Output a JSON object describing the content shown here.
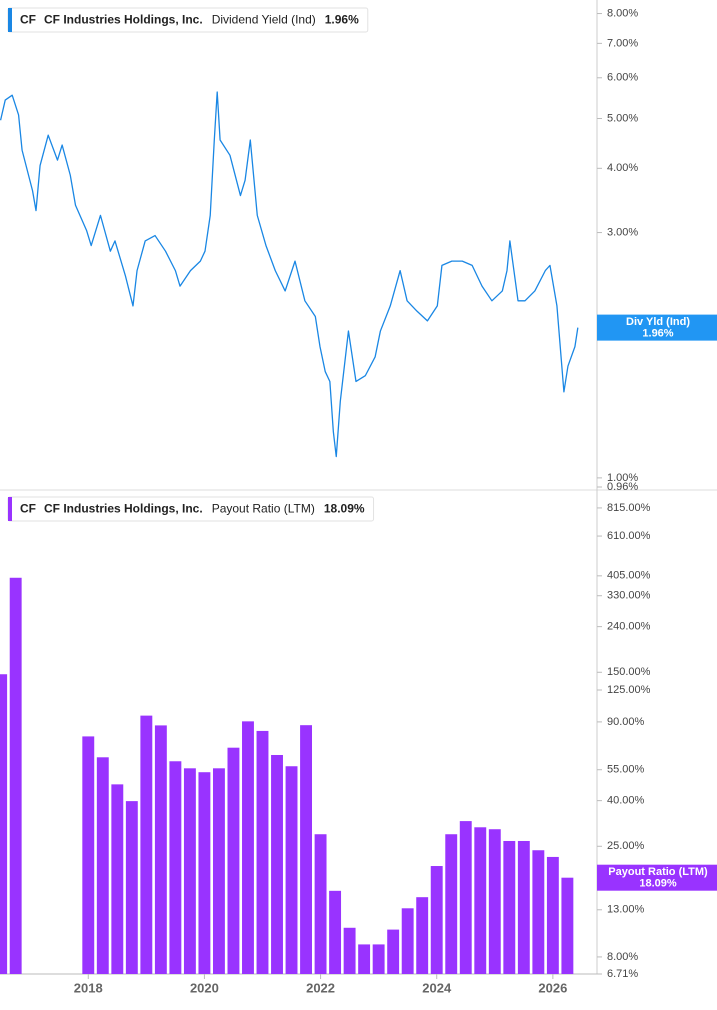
{
  "chart_data": [
    {
      "type": "line",
      "ticker": "CF",
      "company": "CF Industries Holdings, Inc.",
      "series": [
        {
          "name": "Dividend Yield (Ind)",
          "color": "#1a87e4",
          "values": [
            4.96,
            5.43,
            5.55,
            5.08,
            4.34,
            3.62,
            3.31,
            4.05,
            4.64,
            4.15,
            4.44,
            3.88,
            3.39,
            3.03,
            2.83,
            3.24,
            2.76,
            2.89,
            2.47,
            2.16,
            2.53,
            2.89,
            2.96,
            2.76,
            2.53,
            2.36,
            2.53,
            2.64,
            2.76,
            3.24,
            4.54,
            5.63,
            4.54,
            4.24,
            3.54,
            3.79,
            4.54,
            3.24,
            2.83,
            2.53,
            2.31,
            2.64,
            2.21,
            2.06,
            1.8,
            1.61,
            1.54,
            1.23,
            1.1,
            1.41,
            1.93,
            1.54,
            1.58,
            1.72,
            1.93,
            2.16,
            2.53,
            2.21,
            2.11,
            2.02,
            2.16,
            2.59,
            2.64,
            2.64,
            2.59,
            2.36,
            2.21,
            2.31,
            2.53,
            2.89,
            2.21,
            2.21,
            2.31,
            2.53,
            2.59,
            2.16,
            1.47,
            1.65,
            1.8,
            1.96
          ]
        }
      ],
      "x": [
        2016.49,
        2016.57,
        2016.69,
        2016.8,
        2016.86,
        2017.04,
        2017.1,
        2017.17,
        2017.31,
        2017.47,
        2017.55,
        2017.69,
        2017.78,
        2017.97,
        2018.05,
        2018.21,
        2018.38,
        2018.46,
        2018.64,
        2018.77,
        2018.84,
        2018.98,
        2019.15,
        2019.33,
        2019.5,
        2019.58,
        2019.76,
        2019.93,
        2020.01,
        2020.1,
        2020.17,
        2020.22,
        2020.27,
        2020.44,
        2020.62,
        2020.7,
        2020.79,
        2020.91,
        2021.06,
        2021.22,
        2021.39,
        2021.56,
        2021.73,
        2021.91,
        2021.99,
        2022.08,
        2022.16,
        2022.22,
        2022.27,
        2022.34,
        2022.48,
        2022.61,
        2022.77,
        2022.94,
        2023.03,
        2023.2,
        2023.37,
        2023.49,
        2023.66,
        2023.84,
        2024.01,
        2024.09,
        2024.26,
        2024.44,
        2024.61,
        2024.78,
        2024.95,
        2025.13,
        2025.21,
        2025.26,
        2025.4,
        2025.52,
        2025.69,
        2025.87,
        2025.95,
        2026.07,
        2026.19,
        2026.26,
        2026.38,
        2026.43
      ],
      "last_value_label": "1.96%",
      "badge_name": "Div Yld (Ind)",
      "badge_color": "#2196f3",
      "xlim": [
        2016.48,
        2026.76
      ],
      "ylim": [
        0.96,
        8.5
      ],
      "log_scale": true,
      "yticks": [
        {
          "value": 8,
          "label": "8.00%"
        },
        {
          "value": 7,
          "label": "7.00%"
        },
        {
          "value": 6,
          "label": "6.00%"
        },
        {
          "value": 5,
          "label": "5.00%"
        },
        {
          "value": 4,
          "label": "4.00%"
        },
        {
          "value": 3,
          "label": "3.00%"
        },
        {
          "value": 1,
          "label": "1.00%"
        },
        {
          "value": 0.96,
          "label": "0.96%"
        }
      ]
    },
    {
      "type": "bar",
      "ticker": "CF",
      "company": "CF Industries Holdings, Inc.",
      "series": [
        {
          "name": "Payout Ratio (LTM)",
          "color": "#9933ff",
          "values": [
            147,
            397,
            77.5,
            62.5,
            47.3,
            39.8,
            96,
            86.8,
            60,
            55.8,
            53.6,
            55.8,
            69,
            90.5,
            82,
            64,
            57,
            87,
            28.3,
            15.8,
            10.8,
            9.1,
            9.1,
            10.6,
            13.2,
            14.8,
            20.4,
            28.3,
            32.4,
            30.4,
            29.8,
            26.4,
            26.4,
            24,
            22.4,
            18.09
          ]
        }
      ],
      "x": [
        2016.5,
        2016.75,
        2018,
        2018.25,
        2018.5,
        2018.75,
        2019,
        2019.25,
        2019.5,
        2019.75,
        2020,
        2020.25,
        2020.5,
        2020.75,
        2021,
        2021.25,
        2021.5,
        2021.75,
        2022,
        2022.25,
        2022.5,
        2022.75,
        2023,
        2023.25,
        2023.5,
        2023.75,
        2024,
        2024.25,
        2024.5,
        2024.75,
        2025,
        2025.25,
        2025.5,
        2025.75,
        2026,
        2026.25
      ],
      "last_value_label": "18.09%",
      "badge_color": "#9933ff",
      "xlim": [
        2016.48,
        2026.76
      ],
      "xticks": [
        2018,
        2020,
        2022,
        2024,
        2026
      ],
      "ylim": [
        6.71,
        931
      ],
      "log_scale": true,
      "yticks": [
        {
          "value": 815,
          "label": "815.00%"
        },
        {
          "value": 610,
          "label": "610.00%"
        },
        {
          "value": 405,
          "label": "405.00%"
        },
        {
          "value": 330,
          "label": "330.00%"
        },
        {
          "value": 240,
          "label": "240.00%"
        },
        {
          "value": 150,
          "label": "150.00%"
        },
        {
          "value": 125,
          "label": "125.00%"
        },
        {
          "value": 90,
          "label": "90.00%"
        },
        {
          "value": 55,
          "label": "55.00%"
        },
        {
          "value": 40,
          "label": "40.00%"
        },
        {
          "value": 25,
          "label": "25.00%"
        },
        {
          "value": 13,
          "label": "13.00%"
        },
        {
          "value": 8,
          "label": "8.00%"
        },
        {
          "value": 6.71,
          "label": "6.71%"
        }
      ]
    }
  ]
}
